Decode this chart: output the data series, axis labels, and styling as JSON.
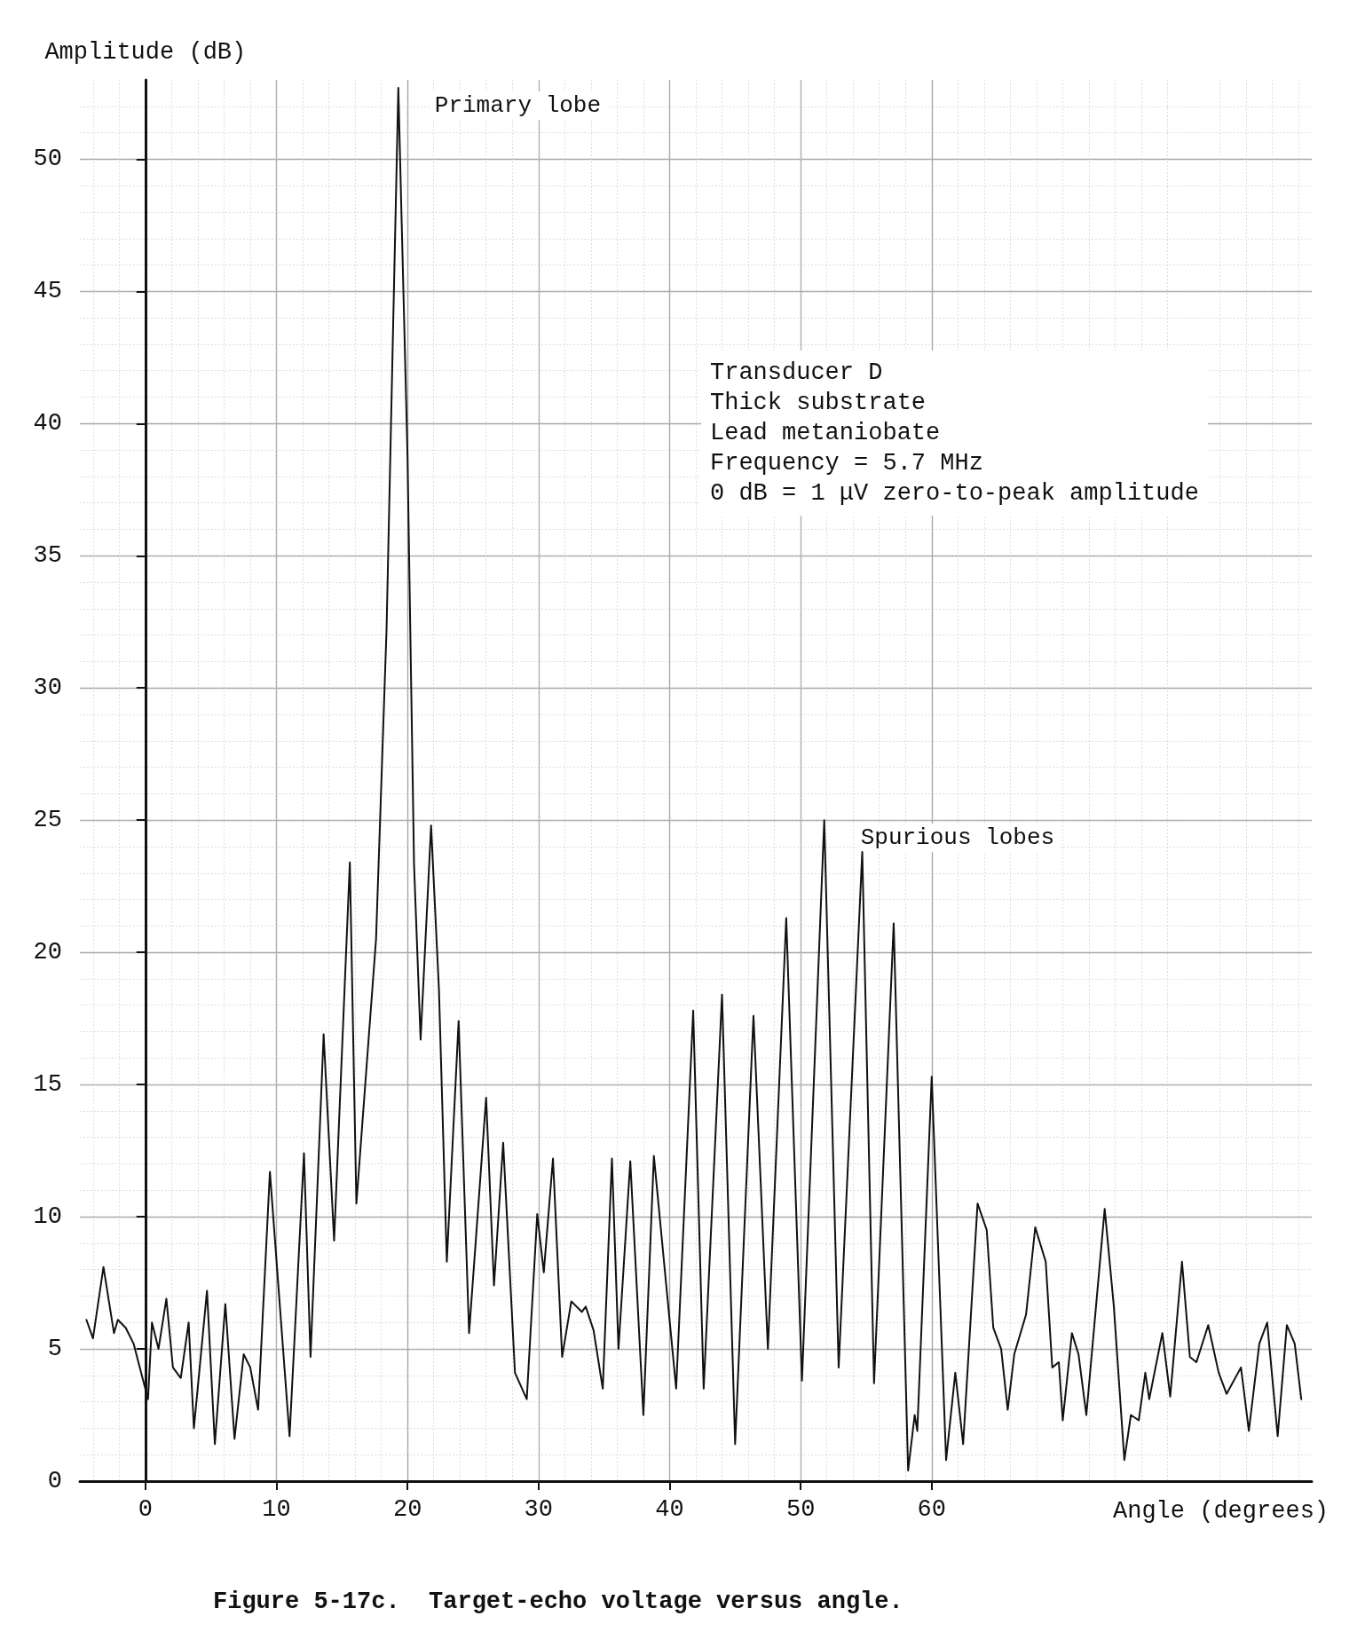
{
  "chart_data": {
    "type": "line",
    "xlabel": "Angle (degrees)",
    "ylabel": "Amplitude (dB)",
    "xlim": [
      -5,
      89
    ],
    "xticks": [
      0,
      10,
      20,
      30,
      40,
      50,
      60
    ],
    "ylim": [
      0,
      53
    ],
    "yticks": [
      0,
      5,
      10,
      15,
      20,
      25,
      30,
      35,
      40,
      45,
      50
    ],
    "grid": true,
    "marker": "none",
    "line_style": "solid",
    "series": [
      {
        "color": "#111111",
        "x": [
          -4.5,
          -4.0,
          -3.2,
          -2.4,
          -2.1,
          -1.5,
          -0.9,
          0.2,
          0.5,
          1.0,
          1.6,
          2.1,
          2.7,
          3.3,
          3.7,
          4.7,
          5.3,
          6.1,
          6.8,
          7.5,
          8.0,
          8.6,
          9.5,
          11.0,
          12.1,
          12.6,
          13.6,
          14.4,
          15.6,
          16.1,
          17.6,
          18.4,
          19.3,
          20.0,
          20.5,
          21.0,
          21.8,
          22.4,
          23.0,
          23.9,
          24.7,
          26.0,
          26.6,
          27.3,
          28.2,
          29.1,
          29.9,
          30.4,
          31.1,
          31.8,
          32.5,
          33.3,
          33.6,
          34.2,
          34.9,
          35.6,
          36.1,
          37.0,
          38.0,
          38.8,
          40.5,
          41.8,
          42.6,
          44.0,
          45.0,
          46.4,
          47.5,
          48.9,
          50.1,
          51.8,
          52.9,
          54.7,
          55.6,
          57.1,
          58.2,
          58.7,
          58.9,
          60.0,
          61.1,
          61.8,
          62.4,
          63.5,
          64.2,
          64.7,
          65.3,
          65.8,
          66.3,
          67.2,
          67.9,
          68.7,
          69.2,
          69.7,
          70.0,
          70.7,
          71.2,
          71.8,
          73.2,
          73.9,
          74.7,
          75.2,
          75.8,
          76.3,
          76.6,
          77.6,
          78.2,
          79.1,
          79.7,
          80.2,
          81.1,
          81.9,
          82.5,
          83.6,
          84.2,
          85.0,
          85.6,
          86.4,
          87.1,
          87.7,
          88.2
        ],
        "values": [
          6.1,
          5.4,
          8.1,
          5.6,
          6.1,
          5.8,
          5.2,
          3.1,
          6.0,
          5.0,
          6.9,
          4.3,
          3.9,
          6.0,
          2.0,
          7.2,
          1.4,
          6.7,
          1.6,
          4.8,
          4.3,
          2.7,
          11.7,
          1.7,
          12.4,
          4.7,
          16.9,
          9.1,
          23.4,
          10.5,
          20.5,
          32.2,
          52.7,
          38.8,
          23.3,
          16.7,
          24.8,
          18.6,
          8.3,
          17.4,
          5.6,
          14.5,
          7.4,
          12.8,
          4.1,
          3.1,
          10.1,
          7.9,
          12.2,
          4.7,
          6.8,
          6.4,
          6.6,
          5.7,
          3.5,
          12.2,
          5.0,
          12.1,
          2.5,
          12.3,
          3.5,
          17.8,
          3.5,
          18.4,
          1.4,
          17.6,
          5.0,
          21.3,
          3.8,
          25.0,
          4.3,
          23.8,
          3.7,
          21.1,
          0.4,
          2.5,
          1.9,
          15.3,
          0.8,
          4.1,
          1.4,
          10.5,
          9.5,
          5.8,
          5.0,
          2.7,
          4.8,
          6.3,
          9.6,
          8.3,
          4.3,
          4.5,
          2.3,
          5.6,
          4.8,
          2.5,
          10.3,
          6.6,
          0.8,
          2.5,
          2.3,
          4.1,
          3.1,
          5.6,
          3.2,
          8.3,
          4.7,
          4.5,
          5.9,
          4.1,
          3.3,
          4.3,
          1.9,
          5.2,
          6.0,
          1.7,
          5.9,
          5.2,
          3.1
        ]
      }
    ],
    "annotations": [
      {
        "text": "Primary lobe",
        "x": 19.3,
        "y": 52.7
      },
      {
        "text": "Spurious lobes",
        "x": 51.8,
        "y": 25.0
      },
      "Transducer D\nThick substrate\nLead metaniobate\nFrequency = 5.7 MHz\n0 dB = 1 μV zero-to-peak amplitude",
      "Figure 5-17c.  Target-echo voltage versus angle."
    ]
  }
}
